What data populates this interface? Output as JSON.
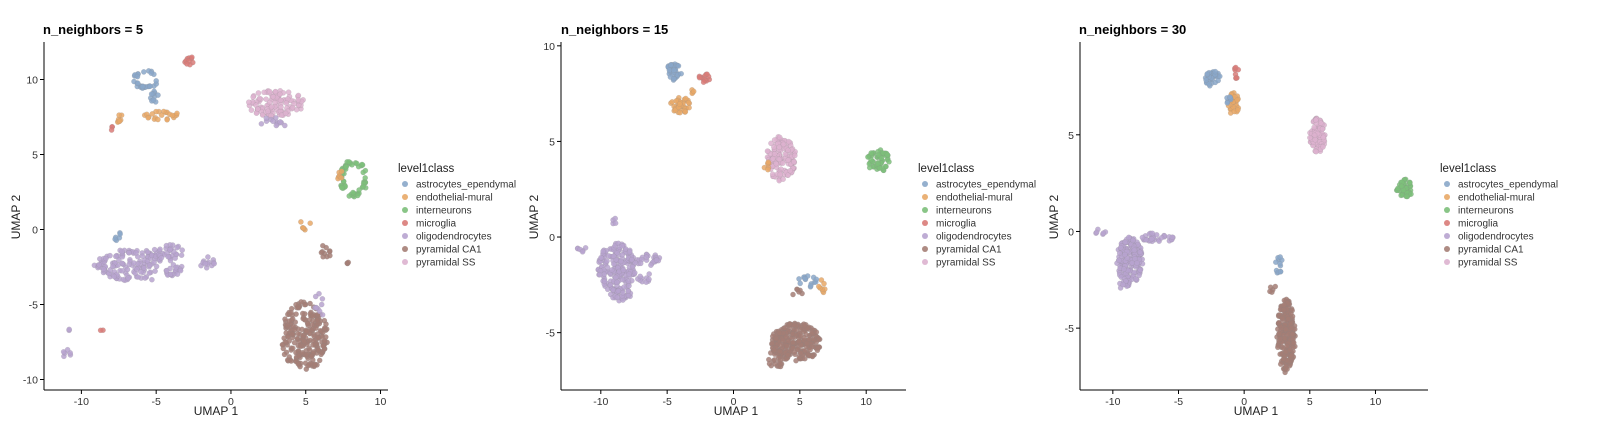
{
  "legend": {
    "title": "level1class",
    "entries": [
      {
        "name": "astrocytes_ependymal",
        "color": "#8aa7c9"
      },
      {
        "name": "endothelial-mural",
        "color": "#e8a867"
      },
      {
        "name": "interneurons",
        "color": "#7cbf7a"
      },
      {
        "name": "microglia",
        "color": "#d97b78"
      },
      {
        "name": "oligodendrocytes",
        "color": "#b7a3cf"
      },
      {
        "name": "pyramidal CA1",
        "color": "#a57e75"
      },
      {
        "name": "pyramidal SS",
        "color": "#ddb2cf"
      }
    ]
  },
  "chart_data": [
    {
      "type": "scatter",
      "title": "n_neighbors = 5",
      "xlabel": "UMAP 1",
      "ylabel": "UMAP 2",
      "xlim": [
        -12.5,
        10.5
      ],
      "ylim": [
        -10.7,
        12.5
      ],
      "xticks": [
        -10,
        -5,
        0,
        5,
        10
      ],
      "yticks": [
        -10,
        -5,
        0,
        5,
        10
      ],
      "legend_position": "right",
      "grid": false,
      "clusters": [
        {
          "class": "astrocytes_ependymal",
          "shape": "ring",
          "cx": -5.7,
          "cy": 10.0,
          "rx": 0.8,
          "ry": 0.6,
          "n": 30
        },
        {
          "class": "astrocytes_ependymal",
          "shape": "blob",
          "cx": -5.1,
          "cy": 8.9,
          "rx": 0.3,
          "ry": 0.6,
          "n": 10
        },
        {
          "class": "endothelial-mural",
          "shape": "blob",
          "cx": -4.6,
          "cy": 7.6,
          "rx": 1.2,
          "ry": 0.3,
          "n": 22
        },
        {
          "class": "endothelial-mural",
          "shape": "blob",
          "cx": -7.3,
          "cy": 7.4,
          "rx": 0.5,
          "ry": 0.3,
          "n": 8
        },
        {
          "class": "microglia",
          "shape": "blob",
          "cx": -2.8,
          "cy": 11.2,
          "rx": 0.3,
          "ry": 0.4,
          "n": 10
        },
        {
          "class": "microglia",
          "shape": "blob",
          "cx": -8.0,
          "cy": 6.8,
          "rx": 0.2,
          "ry": 0.2,
          "n": 3
        },
        {
          "class": "pyramidal SS",
          "shape": "blob",
          "cx": 3.0,
          "cy": 8.4,
          "rx": 1.9,
          "ry": 0.9,
          "n": 110
        },
        {
          "class": "oligodendrocytes",
          "shape": "blob",
          "cx": 2.9,
          "cy": 7.1,
          "rx": 0.9,
          "ry": 0.4,
          "n": 12
        },
        {
          "class": "interneurons",
          "shape": "ring",
          "cx": 8.2,
          "cy": 3.4,
          "rx": 0.9,
          "ry": 1.2,
          "n": 55
        },
        {
          "class": "endothelial-mural",
          "shape": "blob",
          "cx": 7.3,
          "cy": 3.6,
          "rx": 0.3,
          "ry": 0.4,
          "n": 6
        },
        {
          "class": "oligodendrocytes",
          "shape": "ring",
          "cx": -6.2,
          "cy": -2.4,
          "rx": 2.8,
          "ry": 1.0,
          "n": 60
        },
        {
          "class": "oligodendrocytes",
          "shape": "blob",
          "cx": -6.8,
          "cy": -2.3,
          "rx": 2.2,
          "ry": 1.0,
          "n": 90
        },
        {
          "class": "oligodendrocytes",
          "shape": "blob",
          "cx": -4.2,
          "cy": -1.5,
          "rx": 1.1,
          "ry": 0.6,
          "n": 28
        },
        {
          "class": "oligodendrocytes",
          "shape": "blob",
          "cx": -1.6,
          "cy": -2.2,
          "rx": 0.5,
          "ry": 0.4,
          "n": 12
        },
        {
          "class": "oligodendrocytes",
          "shape": "blob",
          "cx": -3.5,
          "cy": -2.6,
          "rx": 0.3,
          "ry": 0.4,
          "n": 6
        },
        {
          "class": "oligodendrocytes",
          "shape": "blob",
          "cx": -11.0,
          "cy": -8.3,
          "rx": 0.3,
          "ry": 0.3,
          "n": 6
        },
        {
          "class": "oligodendrocytes",
          "shape": "blob",
          "cx": -10.9,
          "cy": -6.7,
          "rx": 0.1,
          "ry": 0.1,
          "n": 2
        },
        {
          "class": "microglia",
          "shape": "blob",
          "cx": -8.6,
          "cy": -6.7,
          "rx": 0.15,
          "ry": 0.1,
          "n": 2
        },
        {
          "class": "astrocytes_ependymal",
          "shape": "blob",
          "cx": -7.5,
          "cy": -0.6,
          "rx": 0.3,
          "ry": 0.4,
          "n": 6
        },
        {
          "class": "endothelial-mural",
          "shape": "blob",
          "cx": 5.0,
          "cy": 0.3,
          "rx": 0.4,
          "ry": 0.4,
          "n": 6
        },
        {
          "class": "pyramidal CA1",
          "shape": "blob",
          "cx": 6.3,
          "cy": -1.5,
          "rx": 0.4,
          "ry": 0.5,
          "n": 10
        },
        {
          "class": "pyramidal CA1",
          "shape": "blob",
          "cx": 7.9,
          "cy": -2.2,
          "rx": 0.2,
          "ry": 0.1,
          "n": 3
        },
        {
          "class": "pyramidal CA1",
          "shape": "blob",
          "cx": 4.9,
          "cy": -7.1,
          "rx": 1.6,
          "ry": 2.3,
          "n": 230
        },
        {
          "class": "oligodendrocytes",
          "shape": "blob",
          "cx": 6.0,
          "cy": -5.0,
          "rx": 0.5,
          "ry": 0.8,
          "n": 10
        }
      ]
    },
    {
      "type": "scatter",
      "title": "n_neighbors = 15",
      "xlabel": "UMAP 1",
      "ylabel": "UMAP 2",
      "xlim": [
        -13,
        13
      ],
      "ylim": [
        -8,
        10.2
      ],
      "xticks": [
        -10,
        -5,
        0,
        5,
        10
      ],
      "yticks": [
        -5,
        0,
        5,
        10
      ],
      "legend_position": "right",
      "grid": false,
      "clusters": [
        {
          "class": "astrocytes_ependymal",
          "shape": "blob",
          "cx": -4.5,
          "cy": 8.6,
          "rx": 0.6,
          "ry": 0.5,
          "n": 35
        },
        {
          "class": "endothelial-mural",
          "shape": "blob",
          "cx": -4.0,
          "cy": 6.9,
          "rx": 0.8,
          "ry": 0.4,
          "n": 40
        },
        {
          "class": "microglia",
          "shape": "blob",
          "cx": -2.2,
          "cy": 8.3,
          "rx": 0.4,
          "ry": 0.3,
          "n": 14
        },
        {
          "class": "endothelial-mural",
          "shape": "blob",
          "cx": -3.1,
          "cy": 7.5,
          "rx": 0.2,
          "ry": 0.2,
          "n": 4
        },
        {
          "class": "pyramidal SS",
          "shape": "blob",
          "cx": 3.6,
          "cy": 4.1,
          "rx": 1.1,
          "ry": 1.2,
          "n": 130
        },
        {
          "class": "endothelial-mural",
          "shape": "blob",
          "cx": 2.5,
          "cy": 3.8,
          "rx": 0.2,
          "ry": 0.4,
          "n": 6
        },
        {
          "class": "interneurons",
          "shape": "blob",
          "cx": 10.9,
          "cy": 4.0,
          "rx": 0.9,
          "ry": 0.6,
          "n": 55
        },
        {
          "class": "oligodendrocytes",
          "shape": "blob",
          "cx": -8.8,
          "cy": -1.6,
          "rx": 1.4,
          "ry": 1.3,
          "n": 170
        },
        {
          "class": "oligodendrocytes",
          "shape": "blob",
          "cx": -6.5,
          "cy": -1.2,
          "rx": 1.2,
          "ry": 0.3,
          "n": 30
        },
        {
          "class": "oligodendrocytes",
          "shape": "blob",
          "cx": -8.5,
          "cy": -3.0,
          "rx": 0.8,
          "ry": 0.4,
          "n": 30
        },
        {
          "class": "oligodendrocytes",
          "shape": "blob",
          "cx": -6.8,
          "cy": -2.1,
          "rx": 0.6,
          "ry": 0.3,
          "n": 10
        },
        {
          "class": "oligodendrocytes",
          "shape": "blob",
          "cx": -11.5,
          "cy": -0.6,
          "rx": 0.4,
          "ry": 0.2,
          "n": 6
        },
        {
          "class": "oligodendrocytes",
          "shape": "blob",
          "cx": -9.0,
          "cy": 0.9,
          "rx": 0.15,
          "ry": 0.3,
          "n": 4
        },
        {
          "class": "astrocytes_ependymal",
          "shape": "blob",
          "cx": 5.6,
          "cy": -2.3,
          "rx": 0.7,
          "ry": 0.4,
          "n": 14
        },
        {
          "class": "endothelial-mural",
          "shape": "blob",
          "cx": 6.6,
          "cy": -2.6,
          "rx": 0.3,
          "ry": 0.4,
          "n": 8
        },
        {
          "class": "pyramidal CA1",
          "shape": "blob",
          "cx": 4.8,
          "cy": -2.9,
          "rx": 0.4,
          "ry": 0.2,
          "n": 6
        },
        {
          "class": "pyramidal CA1",
          "shape": "blob",
          "cx": 4.7,
          "cy": -5.5,
          "rx": 1.9,
          "ry": 1.0,
          "n": 250
        },
        {
          "class": "pyramidal CA1",
          "shape": "blob",
          "cx": 3.2,
          "cy": -6.4,
          "rx": 0.6,
          "ry": 0.5,
          "n": 25
        }
      ]
    },
    {
      "type": "scatter",
      "title": "n_neighbors = 30",
      "xlabel": "UMAP 1",
      "ylabel": "UMAP 2",
      "xlim": [
        -12.5,
        14
      ],
      "ylim": [
        -8.2,
        9.8
      ],
      "xticks": [
        -10,
        -5,
        0,
        5,
        10
      ],
      "yticks": [
        -5,
        0,
        5
      ],
      "legend_position": "right",
      "grid": false,
      "clusters": [
        {
          "class": "astrocytes_ependymal",
          "shape": "blob",
          "cx": -2.4,
          "cy": 7.9,
          "rx": 0.6,
          "ry": 0.4,
          "n": 35
        },
        {
          "class": "microglia",
          "shape": "blob",
          "cx": -0.6,
          "cy": 8.3,
          "rx": 0.2,
          "ry": 0.4,
          "n": 8
        },
        {
          "class": "endothelial-mural",
          "shape": "blob",
          "cx": -0.8,
          "cy": 6.6,
          "rx": 0.4,
          "ry": 0.6,
          "n": 30
        },
        {
          "class": "astrocytes_ependymal",
          "shape": "blob",
          "cx": -1.2,
          "cy": 6.9,
          "rx": 0.2,
          "ry": 0.3,
          "n": 6
        },
        {
          "class": "pyramidal SS",
          "shape": "blob",
          "cx": 5.6,
          "cy": 5.0,
          "rx": 0.6,
          "ry": 0.9,
          "n": 90
        },
        {
          "class": "interneurons",
          "shape": "blob",
          "cx": 12.2,
          "cy": 2.2,
          "rx": 0.6,
          "ry": 0.5,
          "n": 45
        },
        {
          "class": "oligodendrocytes",
          "shape": "blob",
          "cx": -8.7,
          "cy": -1.5,
          "rx": 1.0,
          "ry": 1.2,
          "n": 180
        },
        {
          "class": "oligodendrocytes",
          "shape": "blob",
          "cx": -6.6,
          "cy": -0.3,
          "rx": 1.4,
          "ry": 0.25,
          "n": 30
        },
        {
          "class": "oligodendrocytes",
          "shape": "blob",
          "cx": -10.9,
          "cy": 0.0,
          "rx": 0.5,
          "ry": 0.15,
          "n": 6
        },
        {
          "class": "oligodendrocytes",
          "shape": "blob",
          "cx": -9.2,
          "cy": -2.8,
          "rx": 0.5,
          "ry": 0.3,
          "n": 12
        },
        {
          "class": "astrocytes_ependymal",
          "shape": "blob",
          "cx": 2.6,
          "cy": -1.7,
          "rx": 0.3,
          "ry": 0.5,
          "n": 12
        },
        {
          "class": "pyramidal CA1",
          "shape": "blob",
          "cx": 2.2,
          "cy": -3.0,
          "rx": 0.3,
          "ry": 0.2,
          "n": 5
        },
        {
          "class": "pyramidal CA1",
          "shape": "blob",
          "cx": 3.2,
          "cy": -5.4,
          "rx": 0.7,
          "ry": 1.9,
          "n": 230
        }
      ]
    }
  ]
}
